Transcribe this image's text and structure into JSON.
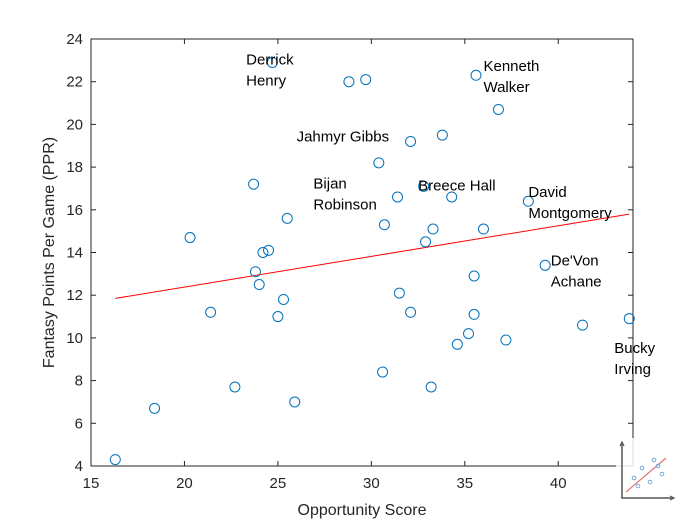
{
  "chart_data": {
    "type": "scatter",
    "xlabel": "Opportunity Score",
    "ylabel": "Fantasy Points Per Game (PPR)",
    "xlim": [
      15,
      44
    ],
    "ylim": [
      4,
      24
    ],
    "xticks": [
      15,
      20,
      25,
      30,
      35,
      40
    ],
    "yticks": [
      4,
      6,
      8,
      10,
      12,
      14,
      16,
      18,
      20,
      22,
      24
    ],
    "grid": false,
    "point_color": "#0072BD",
    "fit_color": "#FF0000",
    "points": [
      {
        "x": 16.3,
        "y": 4.3
      },
      {
        "x": 18.4,
        "y": 6.7
      },
      {
        "x": 20.3,
        "y": 14.7
      },
      {
        "x": 21.4,
        "y": 11.2
      },
      {
        "x": 22.7,
        "y": 7.7
      },
      {
        "x": 23.7,
        "y": 17.2
      },
      {
        "x": 23.8,
        "y": 13.1
      },
      {
        "x": 24.0,
        "y": 12.5
      },
      {
        "x": 24.2,
        "y": 14.0
      },
      {
        "x": 24.5,
        "y": 14.1
      },
      {
        "x": 24.7,
        "y": 22.9
      },
      {
        "x": 25.0,
        "y": 11.0
      },
      {
        "x": 25.3,
        "y": 11.8
      },
      {
        "x": 25.5,
        "y": 15.6
      },
      {
        "x": 25.9,
        "y": 7.0
      },
      {
        "x": 28.8,
        "y": 22.0
      },
      {
        "x": 29.7,
        "y": 22.1
      },
      {
        "x": 30.4,
        "y": 18.2
      },
      {
        "x": 30.6,
        "y": 8.4
      },
      {
        "x": 30.7,
        "y": 15.3
      },
      {
        "x": 31.4,
        "y": 16.6
      },
      {
        "x": 31.5,
        "y": 12.1
      },
      {
        "x": 32.1,
        "y": 19.2
      },
      {
        "x": 32.1,
        "y": 11.2
      },
      {
        "x": 32.8,
        "y": 17.1
      },
      {
        "x": 32.9,
        "y": 14.5
      },
      {
        "x": 33.2,
        "y": 7.7
      },
      {
        "x": 33.3,
        "y": 15.1
      },
      {
        "x": 33.8,
        "y": 19.5
      },
      {
        "x": 34.3,
        "y": 16.6
      },
      {
        "x": 34.6,
        "y": 9.7
      },
      {
        "x": 35.2,
        "y": 10.2
      },
      {
        "x": 35.5,
        "y": 11.1
      },
      {
        "x": 35.5,
        "y": 12.9
      },
      {
        "x": 35.6,
        "y": 22.3
      },
      {
        "x": 36.0,
        "y": 15.1
      },
      {
        "x": 36.8,
        "y": 20.7
      },
      {
        "x": 37.2,
        "y": 9.9
      },
      {
        "x": 38.4,
        "y": 16.4
      },
      {
        "x": 39.3,
        "y": 13.4
      },
      {
        "x": 41.3,
        "y": 10.6
      },
      {
        "x": 43.8,
        "y": 10.9
      }
    ],
    "fit_line": {
      "x": [
        16.3,
        43.8
      ],
      "y": [
        11.85,
        15.8
      ]
    },
    "annotations": [
      {
        "lines": [
          "Derrick",
          "Henry"
        ],
        "x": 23.3,
        "y": 22.8,
        "anchor": "start"
      },
      {
        "lines": [
          "Kenneth",
          "Walker"
        ],
        "x": 36.0,
        "y": 22.5,
        "anchor": "start"
      },
      {
        "lines": [
          "Jahmyr Gibbs"
        ],
        "x": 26.0,
        "y": 19.2,
        "anchor": "start"
      },
      {
        "lines": [
          "Bijan",
          "Robinson"
        ],
        "x": 26.9,
        "y": 17.0,
        "anchor": "start"
      },
      {
        "lines": [
          "Breece Hall"
        ],
        "x": 32.5,
        "y": 16.9,
        "anchor": "start"
      },
      {
        "lines": [
          "David",
          "Montgomery"
        ],
        "x": 38.4,
        "y": 16.6,
        "anchor": "start"
      },
      {
        "lines": [
          "De'Von",
          "Achane"
        ],
        "x": 39.6,
        "y": 13.4,
        "anchor": "start"
      },
      {
        "lines": [
          "Bucky",
          "Irving"
        ],
        "x": 43.0,
        "y": 9.3,
        "anchor": "start"
      }
    ]
  }
}
